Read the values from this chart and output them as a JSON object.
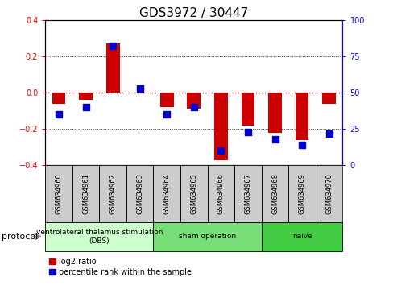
{
  "title": "GDS3972 / 30447",
  "samples": [
    "GSM634960",
    "GSM634961",
    "GSM634962",
    "GSM634963",
    "GSM634964",
    "GSM634965",
    "GSM634966",
    "GSM634967",
    "GSM634968",
    "GSM634969",
    "GSM634970"
  ],
  "log2_ratio": [
    -0.06,
    -0.04,
    0.27,
    0.0,
    -0.08,
    -0.09,
    -0.37,
    -0.18,
    -0.22,
    -0.26,
    -0.06
  ],
  "percentile_rank": [
    35,
    40,
    82,
    53,
    35,
    40,
    10,
    23,
    18,
    14,
    22
  ],
  "ylim_left": [
    -0.4,
    0.4
  ],
  "ylim_right": [
    0,
    100
  ],
  "yticks_left": [
    -0.4,
    -0.2,
    0.0,
    0.2,
    0.4
  ],
  "yticks_right": [
    0,
    25,
    50,
    75,
    100
  ],
  "groups": [
    {
      "label": "ventrolateral thalamus stimulation\n(DBS)",
      "start": 0,
      "end": 3,
      "color": "#ccffcc"
    },
    {
      "label": "sham operation",
      "start": 4,
      "end": 7,
      "color": "#77dd77"
    },
    {
      "label": "naive",
      "start": 8,
      "end": 10,
      "color": "#44cc44"
    }
  ],
  "bar_color": "#cc0000",
  "dot_color": "#0000cc",
  "zero_line_color": "#cc0000",
  "dotted_color": "#333333",
  "sample_box_color": "#cccccc",
  "bg_color": "#ffffff",
  "protocol_label": "protocol",
  "legend_log2": "log2 ratio",
  "legend_pct": "percentile rank within the sample",
  "title_fontsize": 11,
  "tick_fontsize": 7,
  "sample_fontsize": 6,
  "bar_width": 0.5,
  "dot_size": 30
}
